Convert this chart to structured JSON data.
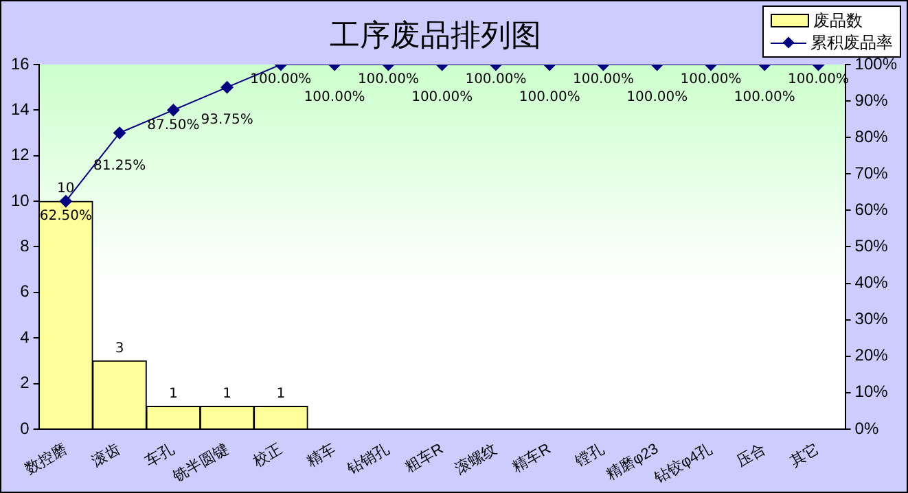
{
  "chart_data": {
    "type": "bar",
    "title": "工序废品排列图",
    "categories": [
      "数控磨",
      "滚齿",
      "车孔",
      "铣半圆键",
      "校正",
      "精车",
      "钻销孔",
      "粗车R",
      "滚螺纹",
      "精车R",
      "镗孔",
      "精磨φ23",
      "钻铰φ4孔",
      "压合",
      "其它"
    ],
    "series": [
      {
        "name": "废品数",
        "color": "#ffff99",
        "values": [
          10,
          3,
          1,
          1,
          1,
          0,
          0,
          0,
          0,
          0,
          0,
          0,
          0,
          0,
          0
        ],
        "value_labels": [
          "10",
          "3",
          "1",
          "1",
          "1",
          null,
          null,
          null,
          null,
          null,
          null,
          null,
          null,
          null,
          null
        ]
      },
      {
        "name": "累积废品率",
        "type": "line",
        "axis": "y2",
        "color": "#000080",
        "values": [
          62.5,
          81.25,
          87.5,
          93.75,
          100,
          100,
          100,
          100,
          100,
          100,
          100,
          100,
          100,
          100,
          100
        ],
        "value_labels": [
          "62.50%",
          "81.25%",
          "87.50%",
          "93.75%",
          "100.00%",
          "100.00%",
          "100.00%",
          "100.00%",
          "100.00%",
          "100.00%",
          "100.00%",
          "100.00%",
          "100.00%",
          "100.00%",
          "100.00%"
        ]
      }
    ],
    "ylim": [
      0,
      16
    ],
    "yticks": [
      0,
      2,
      4,
      6,
      8,
      10,
      12,
      14,
      16
    ],
    "y2lim": [
      0,
      100
    ],
    "y2ticks": [
      {
        "value": 0,
        "label": "0%"
      },
      {
        "value": 10,
        "label": "10%"
      },
      {
        "value": 20,
        "label": "20%"
      },
      {
        "value": 30,
        "label": "30%"
      },
      {
        "value": 40,
        "label": "40%"
      },
      {
        "value": 50,
        "label": "50%"
      },
      {
        "value": 60,
        "label": "60%"
      },
      {
        "value": 70,
        "label": "70%"
      },
      {
        "value": 80,
        "label": "80%"
      },
      {
        "value": 90,
        "label": "90%"
      },
      {
        "value": 100,
        "label": "100%"
      }
    ],
    "grid": false,
    "legend": "top right",
    "marker": "diamond"
  }
}
